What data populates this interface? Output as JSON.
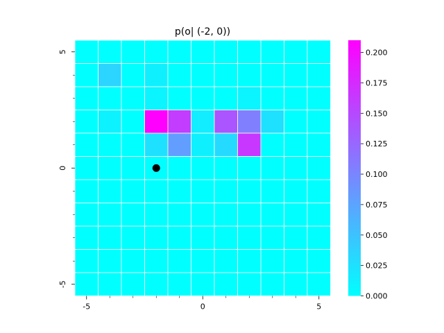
{
  "chart_data": {
    "type": "heatmap",
    "title": "p(o| (-2, 0))",
    "xlabel": "",
    "ylabel": "",
    "x_range": [
      -5.5,
      5.5
    ],
    "y_range": [
      -5.5,
      5.5
    ],
    "x_ticks_major": [
      -5,
      0,
      5
    ],
    "x_ticks_minor": [
      -4,
      -3,
      -2,
      -1,
      1,
      2,
      3,
      4
    ],
    "y_ticks_major": [
      5,
      0,
      -5
    ],
    "y_ticks_minor": [
      4,
      3,
      2,
      1,
      -1,
      -2,
      -3,
      -4
    ],
    "x_tick_labels": [
      "-5",
      "0",
      "5"
    ],
    "y_tick_labels": [
      "5",
      "0",
      "-5"
    ],
    "rows_y": [
      5,
      4,
      3,
      2,
      1,
      0,
      -1,
      -2,
      -3,
      -4,
      -5
    ],
    "cols_x": [
      -5,
      -4,
      -3,
      -2,
      -1,
      0,
      1,
      2,
      3,
      4,
      5
    ],
    "values": [
      [
        0,
        0,
        0,
        0,
        0,
        0,
        0,
        0,
        0,
        0,
        0
      ],
      [
        0,
        0.035,
        0,
        0.012,
        0,
        0,
        0,
        0,
        0,
        0,
        0
      ],
      [
        0,
        0,
        0,
        0.008,
        0,
        0,
        0,
        0.008,
        0,
        0,
        0
      ],
      [
        0,
        0.01,
        0,
        0.21,
        0.16,
        0.015,
        0.14,
        0.105,
        0.025,
        0,
        0
      ],
      [
        0,
        0,
        0,
        0.025,
        0.08,
        0.012,
        0.03,
        0.165,
        0,
        0,
        0
      ],
      [
        0,
        0,
        0,
        0,
        0,
        0,
        0,
        0,
        0,
        0,
        0
      ],
      [
        0,
        0,
        0,
        0,
        0,
        0,
        0,
        0,
        0,
        0,
        0
      ],
      [
        0,
        0,
        0,
        0,
        0,
        0,
        0,
        0,
        0,
        0,
        0
      ],
      [
        0,
        0,
        0,
        0,
        0,
        0,
        0,
        0,
        0,
        0,
        0
      ],
      [
        0,
        0,
        0,
        0,
        0,
        0,
        0,
        0,
        0,
        0,
        0
      ],
      [
        0,
        0,
        0,
        0,
        0,
        0,
        0,
        0,
        0,
        0,
        0
      ]
    ],
    "marker": {
      "x": -2,
      "y": 0
    },
    "colormap": "cool",
    "colorbar": {
      "vmin": 0,
      "vmax": 0.21,
      "ticks": [
        0,
        0.025,
        0.05,
        0.075,
        0.1,
        0.125,
        0.15,
        0.175,
        0.2
      ],
      "tick_labels": [
        "0.000",
        "0.025",
        "0.050",
        "0.075",
        "0.100",
        "0.125",
        "0.150",
        "0.175",
        "0.200"
      ]
    },
    "grid": true
  },
  "colors": {
    "cmap_low": "#00ffff",
    "cmap_high": "#ff00ff",
    "grid_line": "#ffffff",
    "marker": "#000000"
  }
}
